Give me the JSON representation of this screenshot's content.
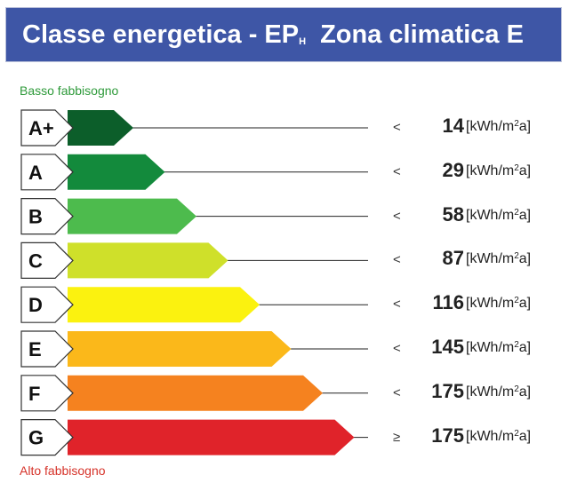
{
  "header": {
    "title_main": "Classe energetica - EP",
    "title_sub": "H",
    "title_zone": "Zona climatica E",
    "bg_color": "#3e56a6"
  },
  "hints": {
    "low": "Basso fabbisogno",
    "low_color": "#2e9a3a",
    "high": "Alto fabbisogno",
    "high_color": "#d6332a"
  },
  "unit": {
    "base": "[kWh/m",
    "exp": "2",
    "end": "a]"
  },
  "classes": [
    {
      "label": "A+",
      "comparator": "<",
      "value": "14",
      "color": "#0c5e2a",
      "level": 1
    },
    {
      "label": "A",
      "comparator": "<",
      "value": "29",
      "color": "#138a3c",
      "level": 2
    },
    {
      "label": "B",
      "comparator": "<",
      "value": "58",
      "color": "#4dbb4d",
      "level": 3
    },
    {
      "label": "C",
      "comparator": "<",
      "value": "87",
      "color": "#cfe02a",
      "level": 4
    },
    {
      "label": "D",
      "comparator": "<",
      "value": "116",
      "color": "#fbf20f",
      "level": 5
    },
    {
      "label": "E",
      "comparator": "<",
      "value": "145",
      "color": "#fbb81a",
      "level": 6
    },
    {
      "label": "F",
      "comparator": "<",
      "value": "175",
      "color": "#f5821f",
      "level": 7
    },
    {
      "label": "G",
      "comparator": "≥",
      "value": "175",
      "color": "#e0232a",
      "level": 8
    }
  ]
}
